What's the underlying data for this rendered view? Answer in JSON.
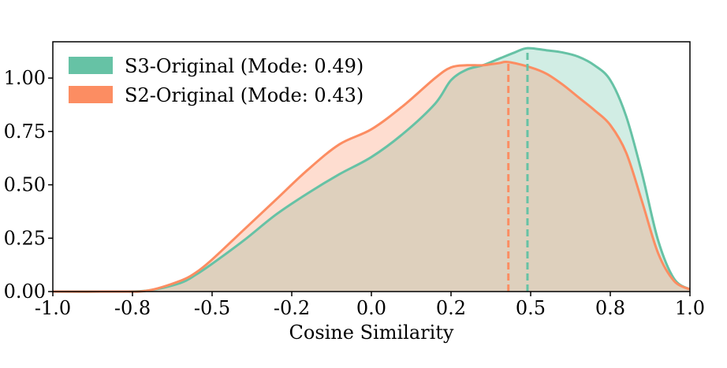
{
  "chart_data": {
    "type": "area",
    "xlabel": "Cosine Similarity",
    "ylabel": "",
    "xlim": [
      -1.0,
      1.0
    ],
    "ylim": [
      0.0,
      1.17
    ],
    "x_ticks": [
      -1.0,
      -0.75,
      -0.5,
      -0.25,
      0.0,
      0.25,
      0.5,
      0.75,
      1.0
    ],
    "x_tick_labels": [
      "-1.0",
      "-0.8",
      "-0.5",
      "-0.2",
      "0.0",
      "0.2",
      "0.5",
      "0.8",
      "1.0"
    ],
    "y_ticks": [
      0.0,
      0.25,
      0.5,
      0.75,
      1.0
    ],
    "y_tick_labels": [
      "0.00",
      "0.25",
      "0.50",
      "0.75",
      "1.00"
    ],
    "grid": false,
    "legend_position": "top-left",
    "series": [
      {
        "name": "S3-Original (Mode: 0.49)",
        "color": "#66c2a5",
        "mode": 0.49,
        "x": [
          -1.0,
          -0.8,
          -0.7,
          -0.6,
          -0.55,
          -0.5,
          -0.4,
          -0.3,
          -0.2,
          -0.1,
          0.0,
          0.1,
          0.2,
          0.25,
          0.3,
          0.35,
          0.4,
          0.45,
          0.49,
          0.55,
          0.6,
          0.65,
          0.7,
          0.75,
          0.8,
          0.85,
          0.9,
          0.95,
          1.0
        ],
        "y": [
          0.0,
          0.0,
          0.005,
          0.04,
          0.08,
          0.13,
          0.24,
          0.36,
          0.46,
          0.55,
          0.63,
          0.74,
          0.88,
          0.99,
          1.04,
          1.06,
          1.09,
          1.12,
          1.14,
          1.13,
          1.12,
          1.1,
          1.06,
          0.99,
          0.82,
          0.55,
          0.24,
          0.06,
          0.01
        ]
      },
      {
        "name": "S2-Original (Mode: 0.43)",
        "color": "#fc8d62",
        "mode": 0.43,
        "x": [
          -1.0,
          -0.8,
          -0.7,
          -0.6,
          -0.55,
          -0.5,
          -0.4,
          -0.3,
          -0.2,
          -0.1,
          0.0,
          0.1,
          0.2,
          0.25,
          0.3,
          0.35,
          0.4,
          0.43,
          0.5,
          0.55,
          0.6,
          0.65,
          0.7,
          0.75,
          0.8,
          0.85,
          0.9,
          0.95,
          1.0
        ],
        "y": [
          0.0,
          0.0,
          0.005,
          0.05,
          0.09,
          0.15,
          0.29,
          0.43,
          0.57,
          0.69,
          0.76,
          0.87,
          1.0,
          1.05,
          1.06,
          1.06,
          1.07,
          1.075,
          1.05,
          1.02,
          0.97,
          0.91,
          0.85,
          0.78,
          0.65,
          0.42,
          0.18,
          0.05,
          0.01
        ]
      }
    ]
  }
}
